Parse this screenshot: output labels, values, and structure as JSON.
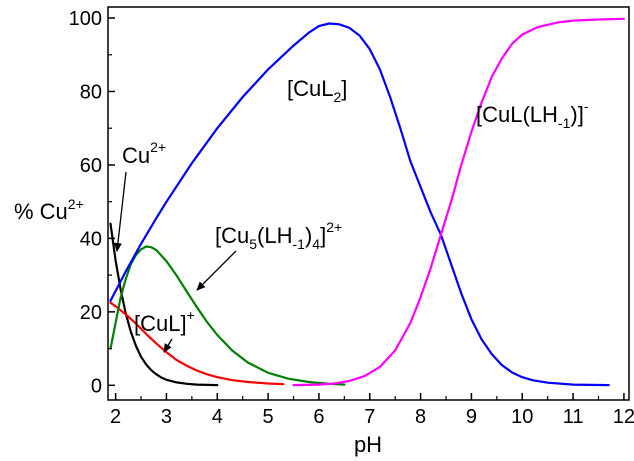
{
  "chart_data": {
    "type": "line",
    "xlabel": "pH",
    "ylabel_parts": {
      "main": "% Cu",
      "sup": "2+"
    },
    "xlim": [
      1.85,
      12.1
    ],
    "ylim": [
      -4,
      103
    ],
    "xticks": [
      2,
      3,
      4,
      5,
      6,
      7,
      8,
      9,
      10,
      11,
      12
    ],
    "yticks": [
      0,
      20,
      40,
      60,
      80,
      100
    ],
    "grid": false,
    "legend": "none",
    "series": [
      {
        "key": "cu_free",
        "color": "#000000",
        "points": [
          [
            1.9,
            44
          ],
          [
            2.0,
            34
          ],
          [
            2.1,
            26
          ],
          [
            2.2,
            19.5
          ],
          [
            2.3,
            14.5
          ],
          [
            2.4,
            10.7
          ],
          [
            2.5,
            7.8
          ],
          [
            2.6,
            5.7
          ],
          [
            2.7,
            4.1
          ],
          [
            2.8,
            3.0
          ],
          [
            2.9,
            2.1
          ],
          [
            3.0,
            1.5
          ],
          [
            3.2,
            0.8
          ],
          [
            3.4,
            0.4
          ],
          [
            3.6,
            0.2
          ],
          [
            3.8,
            0.1
          ],
          [
            4.0,
            0.05
          ]
        ]
      },
      {
        "key": "cul_plus",
        "color": "#ff0000",
        "points": [
          [
            1.9,
            22.5
          ],
          [
            2.0,
            21.5
          ],
          [
            2.2,
            19.3
          ],
          [
            2.4,
            16.8
          ],
          [
            2.6,
            14.0
          ],
          [
            2.8,
            11.4
          ],
          [
            3.0,
            9.0
          ],
          [
            3.2,
            6.9
          ],
          [
            3.4,
            5.3
          ],
          [
            3.6,
            4.0
          ],
          [
            3.8,
            3.0
          ],
          [
            4.0,
            2.2
          ],
          [
            4.3,
            1.4
          ],
          [
            4.6,
            0.9
          ],
          [
            5.0,
            0.5
          ],
          [
            5.3,
            0.3
          ]
        ]
      },
      {
        "key": "cu5",
        "color": "#008000",
        "points": [
          [
            1.9,
            10
          ],
          [
            2.0,
            17
          ],
          [
            2.1,
            24
          ],
          [
            2.2,
            29
          ],
          [
            2.3,
            33
          ],
          [
            2.4,
            35.5
          ],
          [
            2.5,
            37
          ],
          [
            2.6,
            37.8
          ],
          [
            2.7,
            37.6
          ],
          [
            2.8,
            36.8
          ],
          [
            3.0,
            33.8
          ],
          [
            3.2,
            29.9
          ],
          [
            3.4,
            25.5
          ],
          [
            3.6,
            21.2
          ],
          [
            3.8,
            17.2
          ],
          [
            4.0,
            13.7
          ],
          [
            4.3,
            9.4
          ],
          [
            4.6,
            6.2
          ],
          [
            5.0,
            3.4
          ],
          [
            5.4,
            1.8
          ],
          [
            5.8,
            0.9
          ],
          [
            6.2,
            0.4
          ],
          [
            6.5,
            0.2
          ]
        ]
      },
      {
        "key": "cul2",
        "color": "#0000ff",
        "points": [
          [
            1.9,
            23
          ],
          [
            2.2,
            31
          ],
          [
            2.5,
            38.5
          ],
          [
            2.8,
            45.5
          ],
          [
            3.0,
            50
          ],
          [
            3.5,
            60.5
          ],
          [
            4.0,
            70
          ],
          [
            4.5,
            78.5
          ],
          [
            5.0,
            86
          ],
          [
            5.5,
            92.5
          ],
          [
            5.8,
            96
          ],
          [
            6.0,
            97.8
          ],
          [
            6.2,
            98.5
          ],
          [
            6.4,
            98.3
          ],
          [
            6.6,
            97.3
          ],
          [
            6.8,
            95.2
          ],
          [
            7.0,
            91.5
          ],
          [
            7.2,
            86
          ],
          [
            7.4,
            78.5
          ],
          [
            7.6,
            70
          ],
          [
            7.8,
            61
          ],
          [
            8.0,
            54
          ],
          [
            8.2,
            47
          ],
          [
            8.4,
            41
          ],
          [
            8.6,
            33
          ],
          [
            8.8,
            25
          ],
          [
            9.0,
            18
          ],
          [
            9.2,
            12.5
          ],
          [
            9.4,
            8.5
          ],
          [
            9.6,
            5.5
          ],
          [
            9.8,
            3.5
          ],
          [
            10.0,
            2.2
          ],
          [
            10.2,
            1.4
          ],
          [
            10.5,
            0.7
          ],
          [
            11.0,
            0.2
          ],
          [
            11.7,
            0.05
          ]
        ]
      },
      {
        "key": "cul_lh",
        "color": "#ff00ff",
        "points": [
          [
            5.5,
            0.05
          ],
          [
            6.0,
            0.2
          ],
          [
            6.3,
            0.5
          ],
          [
            6.6,
            1.2
          ],
          [
            6.9,
            2.5
          ],
          [
            7.2,
            5
          ],
          [
            7.5,
            9.5
          ],
          [
            7.8,
            17
          ],
          [
            8.0,
            24
          ],
          [
            8.2,
            32
          ],
          [
            8.4,
            41
          ],
          [
            8.6,
            50
          ],
          [
            8.8,
            60
          ],
          [
            9.0,
            69
          ],
          [
            9.2,
            77
          ],
          [
            9.4,
            84
          ],
          [
            9.6,
            89
          ],
          [
            9.8,
            93
          ],
          [
            10.0,
            95.5
          ],
          [
            10.3,
            97.5
          ],
          [
            10.7,
            98.8
          ],
          [
            11.0,
            99.3
          ],
          [
            11.5,
            99.6
          ],
          [
            12.0,
            99.8
          ]
        ]
      }
    ],
    "labels": {
      "cu_free": {
        "main": "Cu",
        "sup": "2+"
      },
      "cul_plus": {
        "main": "[CuL]",
        "sup": "+"
      },
      "cul2": {
        "main": "[CuL",
        "sub": "2",
        "tail": "]"
      },
      "cu5": {
        "main": "[Cu",
        "sub1": "5",
        "mid": "(LH",
        "sub2": "-1",
        "mid2": ")",
        "sub3": "4",
        "tail": "]",
        "sup": "2+"
      },
      "cul_lh": {
        "main": "[CuL(LH",
        "sub": "-1",
        "tail": ")]",
        "sup": "-"
      }
    }
  }
}
